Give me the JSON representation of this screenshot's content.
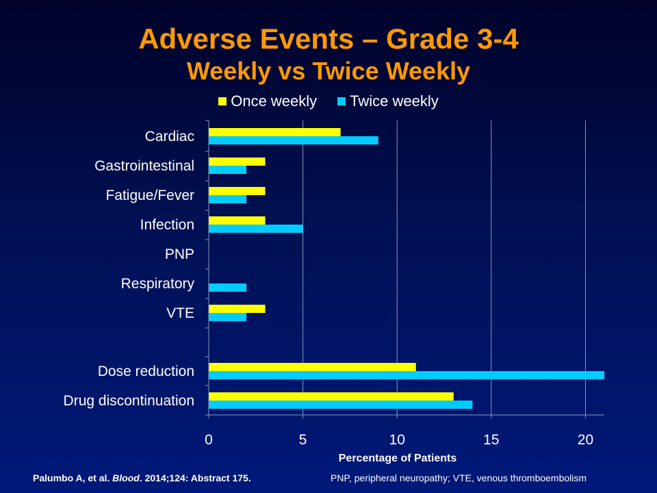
{
  "title": "Adverse Events – Grade 3-4",
  "subtitle": "Weekly vs Twice Weekly",
  "footer": {
    "citation_author": "Palumbo A,  et al. ",
    "citation_journal": "Blood",
    "citation_rest": ". 2014;124: Abstract  175.",
    "abbreviations": "PNP, peripheral neuropathy;  VTE, venous thromboembolism"
  },
  "colors": {
    "once": "#ffff00",
    "twice": "#00ccff",
    "title": "#ff9900"
  },
  "chart_data": {
    "type": "bar",
    "orientation": "horizontal",
    "categories": [
      "Cardiac",
      "Gastrointestinal",
      "Fatigue/Fever",
      "Infection",
      "PNP",
      "Respiratory",
      "VTE",
      "",
      "Dose reduction",
      "Drug discontinuation"
    ],
    "series": [
      {
        "name": "Once weekly",
        "color": "#ffff00",
        "values": [
          7,
          3,
          3,
          3,
          0,
          0,
          3,
          null,
          11,
          13
        ]
      },
      {
        "name": "Twice weekly",
        "color": "#00ccff",
        "values": [
          9,
          2,
          2,
          5,
          0,
          2,
          2,
          null,
          21,
          14
        ]
      }
    ],
    "xlabel": "Percentage of Patients",
    "xlim": [
      0,
      21
    ],
    "xticks": [
      0,
      5,
      10,
      15,
      20
    ],
    "grid": true,
    "legend": "top-center"
  }
}
